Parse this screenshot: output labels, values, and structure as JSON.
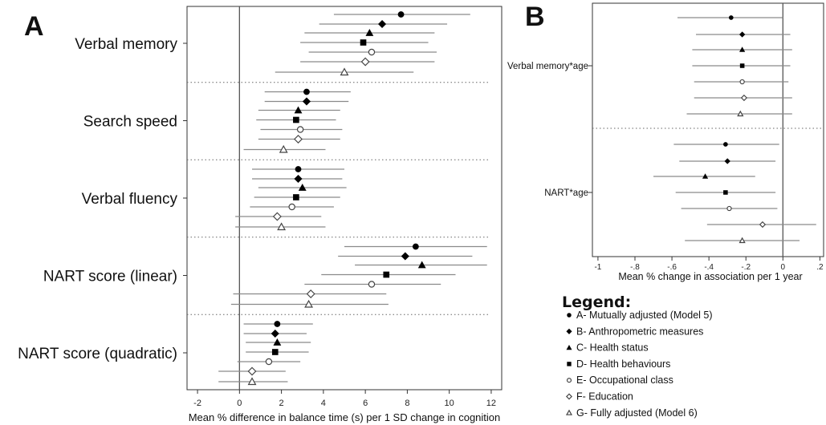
{
  "chart_data": [
    {
      "panel": "A",
      "type": "forest",
      "xlabel": "Mean % difference in balance time (s) per 1 SD change in cognition",
      "xticks": [
        -2,
        0,
        2,
        4,
        6,
        8,
        10,
        12
      ],
      "xlim": [
        -2.5,
        12.5
      ],
      "reference_line": 0,
      "groups": [
        {
          "label": "Verbal memory",
          "estimates": [
            {
              "model": "A",
              "est": 7.7,
              "lo": 4.5,
              "hi": 11.0
            },
            {
              "model": "B",
              "est": 6.8,
              "lo": 3.8,
              "hi": 9.9
            },
            {
              "model": "C",
              "est": 6.2,
              "lo": 3.1,
              "hi": 9.3
            },
            {
              "model": "D",
              "est": 5.9,
              "lo": 2.9,
              "hi": 9.0
            },
            {
              "model": "E",
              "est": 6.3,
              "lo": 3.3,
              "hi": 9.4
            },
            {
              "model": "F",
              "est": 6.0,
              "lo": 2.9,
              "hi": 9.3
            },
            {
              "model": "G",
              "est": 5.0,
              "lo": 1.7,
              "hi": 8.3
            }
          ]
        },
        {
          "label": "Search speed",
          "estimates": [
            {
              "model": "A",
              "est": 3.2,
              "lo": 1.2,
              "hi": 5.3
            },
            {
              "model": "B",
              "est": 3.2,
              "lo": 1.2,
              "hi": 5.2
            },
            {
              "model": "C",
              "est": 2.8,
              "lo": 0.9,
              "hi": 4.8
            },
            {
              "model": "D",
              "est": 2.7,
              "lo": 0.8,
              "hi": 4.6
            },
            {
              "model": "E",
              "est": 2.9,
              "lo": 1.0,
              "hi": 4.9
            },
            {
              "model": "F",
              "est": 2.8,
              "lo": 0.9,
              "hi": 4.8
            },
            {
              "model": "G",
              "est": 2.1,
              "lo": 0.2,
              "hi": 4.1
            }
          ]
        },
        {
          "label": "Verbal fluency",
          "estimates": [
            {
              "model": "A",
              "est": 2.8,
              "lo": 0.6,
              "hi": 5.0
            },
            {
              "model": "B",
              "est": 2.8,
              "lo": 0.6,
              "hi": 4.9
            },
            {
              "model": "C",
              "est": 3.0,
              "lo": 0.9,
              "hi": 5.1
            },
            {
              "model": "D",
              "est": 2.7,
              "lo": 0.7,
              "hi": 4.8
            },
            {
              "model": "E",
              "est": 2.5,
              "lo": 0.5,
              "hi": 4.5
            },
            {
              "model": "F",
              "est": 1.8,
              "lo": -0.2,
              "hi": 3.9
            },
            {
              "model": "G",
              "est": 2.0,
              "lo": -0.2,
              "hi": 4.1
            }
          ]
        },
        {
          "label": "NART score (linear)",
          "estimates": [
            {
              "model": "A",
              "est": 8.4,
              "lo": 5.0,
              "hi": 11.8
            },
            {
              "model": "B",
              "est": 7.9,
              "lo": 4.7,
              "hi": 11.1
            },
            {
              "model": "C",
              "est": 8.7,
              "lo": 5.5,
              "hi": 11.8
            },
            {
              "model": "D",
              "est": 7.0,
              "lo": 3.9,
              "hi": 10.3
            },
            {
              "model": "E",
              "est": 6.3,
              "lo": 3.1,
              "hi": 9.6
            },
            {
              "model": "F",
              "est": 3.4,
              "lo": -0.3,
              "hi": 7.0
            },
            {
              "model": "G",
              "est": 3.3,
              "lo": -0.4,
              "hi": 7.1
            }
          ]
        },
        {
          "label": "NART score (quadratic)",
          "estimates": [
            {
              "model": "A",
              "est": 1.8,
              "lo": 0.2,
              "hi": 3.5
            },
            {
              "model": "B",
              "est": 1.7,
              "lo": 0.2,
              "hi": 3.2
            },
            {
              "model": "C",
              "est": 1.8,
              "lo": 0.3,
              "hi": 3.4
            },
            {
              "model": "D",
              "est": 1.7,
              "lo": 0.3,
              "hi": 3.3
            },
            {
              "model": "E",
              "est": 1.4,
              "lo": -0.1,
              "hi": 2.9
            },
            {
              "model": "F",
              "est": 0.6,
              "lo": -1.0,
              "hi": 2.2
            },
            {
              "model": "G",
              "est": 0.6,
              "lo": -1.0,
              "hi": 2.3
            }
          ]
        }
      ]
    },
    {
      "panel": "B",
      "type": "forest",
      "xlabel": "Mean % change in association per 1 year",
      "xticks": [
        -1,
        -0.8,
        -0.6,
        -0.4,
        -0.2,
        0,
        0.2
      ],
      "xtick_labels": [
        "-1",
        "-.8",
        "-.6",
        "-.4",
        "-.2",
        "0",
        ".2"
      ],
      "xlim": [
        -1.03,
        0.22
      ],
      "reference_line": 0,
      "groups": [
        {
          "label": "Verbal memory*age",
          "estimates": [
            {
              "model": "A",
              "est": -0.28,
              "lo": -0.57,
              "hi": 0.0
            },
            {
              "model": "B",
              "est": -0.22,
              "lo": -0.47,
              "hi": 0.04
            },
            {
              "model": "C",
              "est": -0.22,
              "lo": -0.49,
              "hi": 0.05
            },
            {
              "model": "D",
              "est": -0.22,
              "lo": -0.49,
              "hi": 0.04
            },
            {
              "model": "E",
              "est": -0.22,
              "lo": -0.48,
              "hi": 0.03
            },
            {
              "model": "F",
              "est": -0.21,
              "lo": -0.48,
              "hi": 0.05
            },
            {
              "model": "G",
              "est": -0.23,
              "lo": -0.52,
              "hi": 0.05
            }
          ]
        },
        {
          "label": "NART*age",
          "estimates": [
            {
              "model": "A",
              "est": -0.31,
              "lo": -0.59,
              "hi": -0.02
            },
            {
              "model": "B",
              "est": -0.3,
              "lo": -0.56,
              "hi": -0.04
            },
            {
              "model": "C",
              "est": -0.42,
              "lo": -0.7,
              "hi": -0.15
            },
            {
              "model": "D",
              "est": -0.31,
              "lo": -0.58,
              "hi": -0.04
            },
            {
              "model": "E",
              "est": -0.29,
              "lo": -0.55,
              "hi": -0.03
            },
            {
              "model": "F",
              "est": -0.11,
              "lo": -0.41,
              "hi": 0.18
            },
            {
              "model": "G",
              "est": -0.22,
              "lo": -0.53,
              "hi": 0.09
            }
          ]
        }
      ]
    }
  ],
  "panels": {
    "a_letter": "A",
    "b_letter": "B"
  },
  "legend": {
    "title": "Legend:",
    "items": [
      {
        "model": "A",
        "marker": "circle",
        "label": "A- Mutually adjusted (Model 5)"
      },
      {
        "model": "B",
        "marker": "diamond",
        "label": "B- Anthropometric measures"
      },
      {
        "model": "C",
        "marker": "triangle",
        "label": "C- Health status"
      },
      {
        "model": "D",
        "marker": "square",
        "label": "D- Health behaviours"
      },
      {
        "model": "E",
        "marker": "circle-open",
        "label": "E- Occupational class"
      },
      {
        "model": "F",
        "marker": "diamond-open",
        "label": "F- Education"
      },
      {
        "model": "G",
        "marker": "triangle-open",
        "label": "G- Fully adjusted (Model 6)"
      }
    ]
  }
}
